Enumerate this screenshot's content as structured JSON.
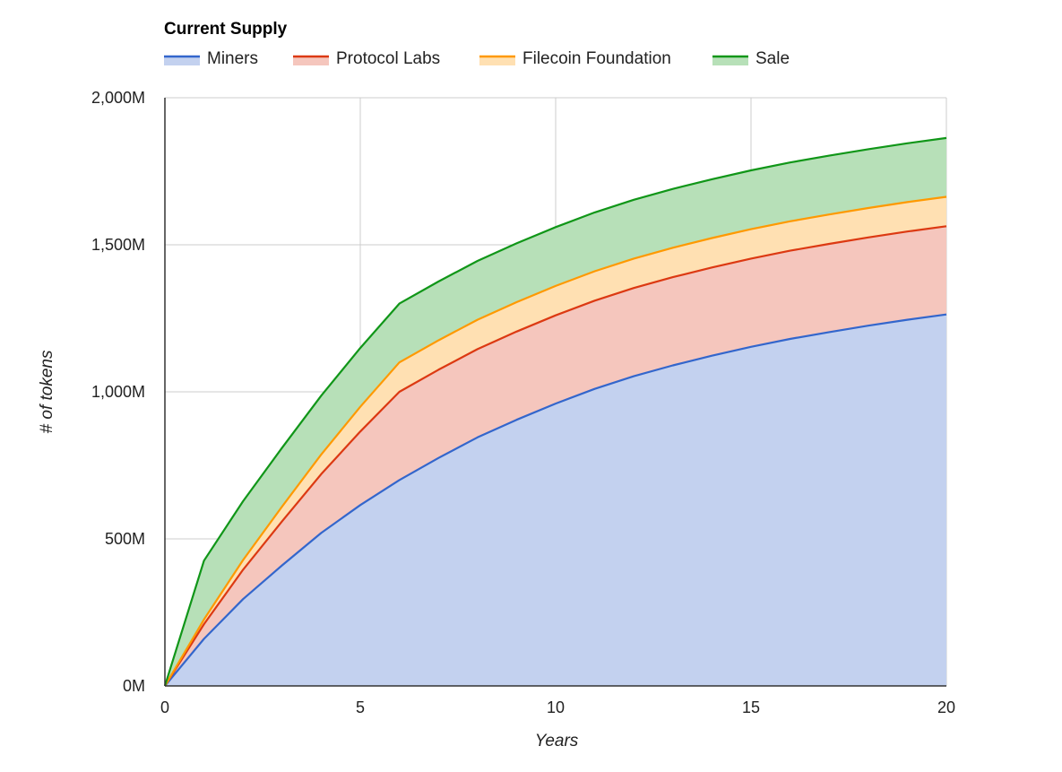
{
  "chart_data": {
    "type": "area",
    "stacked": true,
    "title": "Current Supply",
    "xlabel": "Years",
    "ylabel": "# of tokens",
    "xlim": [
      0,
      20
    ],
    "ylim": [
      0,
      2000
    ],
    "x_ticks": [
      0,
      5,
      10,
      15,
      20
    ],
    "y_ticks": [
      0,
      500,
      1000,
      1500,
      2000
    ],
    "x_tick_labels": [
      "0",
      "5",
      "10",
      "15",
      "20"
    ],
    "y_tick_labels": [
      "0M",
      "500M",
      "1,000M",
      "1,500M",
      "2,000M"
    ],
    "grid": true,
    "legend_position": "top",
    "x": [
      0,
      1,
      2,
      3,
      4,
      5,
      6,
      7,
      8,
      9,
      10,
      11,
      12,
      13,
      14,
      15,
      16,
      17,
      18,
      19,
      20
    ],
    "series": [
      {
        "name": "Miners",
        "line_color": "#3366cc",
        "fill_color": "#c3d1ef",
        "values": [
          0,
          160,
          295,
          410,
          520,
          615,
          700,
          775,
          845,
          905,
          960,
          1010,
          1053,
          1090,
          1123,
          1153,
          1180,
          1203,
          1225,
          1245,
          1263
        ]
      },
      {
        "name": "Protocol Labs",
        "line_color": "#dc3912",
        "fill_color": "#f5c6bd",
        "values": [
          0,
          50,
          100,
          150,
          200,
          250,
          300,
          300,
          300,
          300,
          300,
          300,
          300,
          300,
          300,
          300,
          300,
          300,
          300,
          300,
          300
        ]
      },
      {
        "name": "Filecoin Foundation",
        "line_color": "#ff9900",
        "fill_color": "#ffe0b2",
        "values": [
          0,
          16,
          33,
          50,
          67,
          84,
          100,
          100,
          100,
          100,
          100,
          100,
          100,
          100,
          100,
          100,
          100,
          100,
          100,
          100,
          100
        ]
      },
      {
        "name": "Sale",
        "line_color": "#109618",
        "fill_color": "#b7e0b8",
        "values": [
          0,
          200,
          200,
          200,
          200,
          200,
          200,
          200,
          200,
          200,
          200,
          200,
          200,
          200,
          200,
          200,
          200,
          200,
          200,
          200,
          200
        ]
      }
    ]
  }
}
